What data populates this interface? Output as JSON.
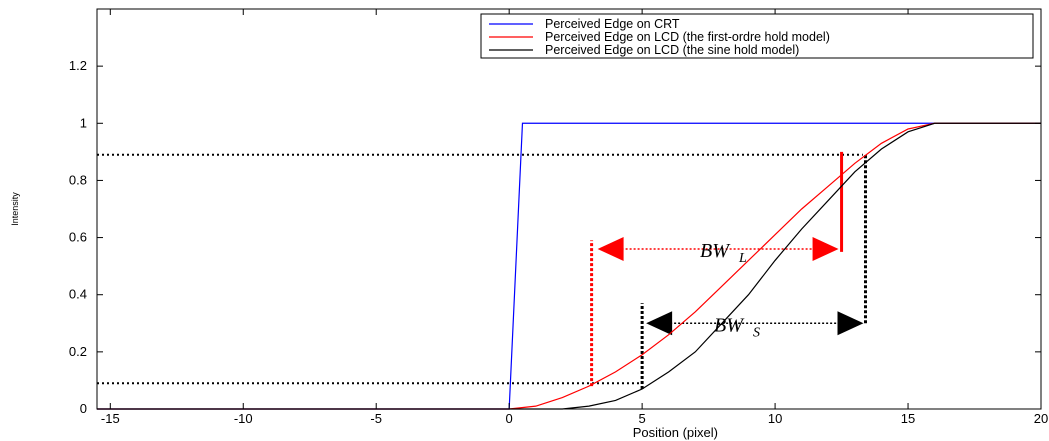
{
  "chart_data": {
    "type": "line",
    "title": "",
    "xlabel": "Position (pixel)",
    "ylabel": "Intensity",
    "xlim": [
      -15.5,
      20
    ],
    "ylim": [
      0,
      1.4
    ],
    "x_ticks": [
      -15,
      -10,
      -5,
      0,
      5,
      10,
      15,
      20
    ],
    "y_ticks": [
      0,
      0.2,
      0.4,
      0.6,
      0.8,
      1,
      1.2
    ],
    "x_tick_labels": [
      "-15",
      "-10",
      "-5",
      "0",
      "5",
      "10",
      "15",
      "20"
    ],
    "y_tick_labels": [
      "0",
      "0.2",
      "0.4",
      "0.6",
      "0.8",
      "1",
      "1.2"
    ],
    "grid": false,
    "legend_position": "top-right",
    "series": [
      {
        "name": "Perceived Edge on CRT",
        "color": "#0000ff",
        "x": [
          -15.5,
          0,
          0.5,
          20
        ],
        "y": [
          0,
          0,
          1,
          1
        ]
      },
      {
        "name": "Perceived Edge on LCD (the first-ordre hold model)",
        "color": "#ff0000",
        "x": [
          -15.5,
          0,
          1,
          2,
          3,
          4,
          5,
          6,
          7,
          8,
          9,
          10,
          11,
          12,
          13,
          14,
          15,
          16,
          20
        ],
        "y": [
          0,
          0,
          0.01,
          0.04,
          0.08,
          0.13,
          0.19,
          0.26,
          0.34,
          0.43,
          0.52,
          0.61,
          0.7,
          0.78,
          0.86,
          0.93,
          0.98,
          1,
          1
        ]
      },
      {
        "name": "Perceived Edge on LCD (the sine hold model)",
        "color": "#000000",
        "x": [
          -15.5,
          2,
          3,
          4,
          5,
          6,
          7,
          8,
          9,
          10,
          11,
          12,
          13,
          14,
          15,
          16,
          20
        ],
        "y": [
          0,
          0,
          0.01,
          0.03,
          0.07,
          0.13,
          0.2,
          0.3,
          0.4,
          0.52,
          0.63,
          0.73,
          0.83,
          0.91,
          0.97,
          1,
          1
        ]
      }
    ],
    "reference_lines": [
      {
        "name": "upper-level-line",
        "y": 0.89,
        "x_from": -15.5,
        "x_to": 13.3,
        "color": "#000000",
        "style": "dotted"
      },
      {
        "name": "lower-level-line",
        "y": 0.09,
        "x_from": -15.5,
        "x_to": 5,
        "color": "#000000",
        "style": "dotted"
      }
    ],
    "annotations": {
      "bw_l": {
        "label": "BW",
        "subscript": "L",
        "color": "#ff0000",
        "left_x": 3.1,
        "right_x": 12.5,
        "arrow_y": 0.56,
        "left_vline": [
          0.08,
          0.59
        ],
        "right_vline": [
          0.55,
          0.9
        ]
      },
      "bw_s": {
        "label": "BW",
        "subscript": "S",
        "color": "#000000",
        "left_x": 5,
        "right_x": 13.4,
        "arrow_y": 0.3,
        "left_vline": [
          0.07,
          0.37
        ],
        "right_vline": [
          0.3,
          0.89
        ]
      }
    }
  }
}
